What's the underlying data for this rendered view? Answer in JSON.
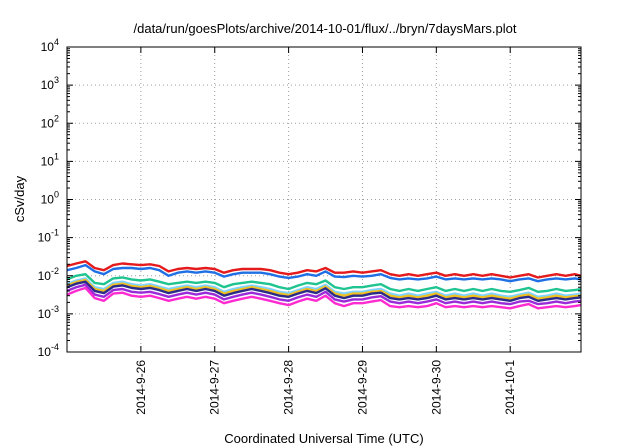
{
  "chart_data": {
    "type": "line",
    "title": "/data/run/goesPlots/archive/2014-10-01/flux/../bryn/7daysMars.plot",
    "xlabel": "Coordinated Universal Time (UTC)",
    "ylabel": "cSv/day",
    "yscale": "log",
    "ylim": [
      0.0001,
      10000
    ],
    "y_ticks": [
      {
        "base": "10",
        "exp": "-4",
        "value": 0.0001
      },
      {
        "base": "10",
        "exp": "-3",
        "value": 0.001
      },
      {
        "base": "10",
        "exp": "-2",
        "value": 0.01
      },
      {
        "base": "10",
        "exp": "-1",
        "value": 0.1
      },
      {
        "base": "10",
        "exp": "0",
        "value": 1
      },
      {
        "base": "10",
        "exp": "1",
        "value": 10
      },
      {
        "base": "10",
        "exp": "2",
        "value": 100
      },
      {
        "base": "10",
        "exp": "3",
        "value": 1000
      },
      {
        "base": "10",
        "exp": "4",
        "value": 10000
      }
    ],
    "xlim": [
      "2014-09-25 00:00",
      "2014-10-01 23:00"
    ],
    "x_ticks": [
      "2014-9-26",
      "2014-9-27",
      "2014-9-28",
      "2014-9-29",
      "2014-9-30",
      "2014-10-1"
    ],
    "grid": true,
    "x": [
      "2014-09-25 00:00",
      "2014-09-25 03:00",
      "2014-09-25 06:00",
      "2014-09-25 09:00",
      "2014-09-25 12:00",
      "2014-09-25 15:00",
      "2014-09-25 18:00",
      "2014-09-25 21:00",
      "2014-09-26 00:00",
      "2014-09-26 03:00",
      "2014-09-26 06:00",
      "2014-09-26 09:00",
      "2014-09-26 12:00",
      "2014-09-26 15:00",
      "2014-09-26 18:00",
      "2014-09-26 21:00",
      "2014-09-27 00:00",
      "2014-09-27 03:00",
      "2014-09-27 06:00",
      "2014-09-27 09:00",
      "2014-09-27 12:00",
      "2014-09-27 15:00",
      "2014-09-27 18:00",
      "2014-09-27 21:00",
      "2014-09-28 00:00",
      "2014-09-28 03:00",
      "2014-09-28 06:00",
      "2014-09-28 09:00",
      "2014-09-28 12:00",
      "2014-09-28 15:00",
      "2014-09-28 18:00",
      "2014-09-28 21:00",
      "2014-09-29 00:00",
      "2014-09-29 03:00",
      "2014-09-29 06:00",
      "2014-09-29 09:00",
      "2014-09-29 12:00",
      "2014-09-29 15:00",
      "2014-09-29 18:00",
      "2014-09-29 21:00",
      "2014-09-30 00:00",
      "2014-09-30 03:00",
      "2014-09-30 06:00",
      "2014-09-30 09:00",
      "2014-09-30 12:00",
      "2014-09-30 15:00",
      "2014-09-30 18:00",
      "2014-09-30 21:00",
      "2014-10-01 00:00",
      "2014-10-01 03:00",
      "2014-10-01 06:00",
      "2014-10-01 09:00",
      "2014-10-01 12:00",
      "2014-10-01 15:00",
      "2014-10-01 18:00",
      "2014-10-01 21:00",
      "2014-10-01 23:00"
    ],
    "series": [
      {
        "color": "#e41a1c",
        "values": [
          0.018,
          0.021,
          0.024,
          0.016,
          0.014,
          0.019,
          0.021,
          0.02,
          0.019,
          0.02,
          0.018,
          0.013,
          0.015,
          0.016,
          0.015,
          0.016,
          0.015,
          0.012,
          0.014,
          0.015,
          0.015,
          0.015,
          0.014,
          0.012,
          0.011,
          0.012,
          0.014,
          0.013,
          0.016,
          0.012,
          0.012,
          0.013,
          0.012,
          0.013,
          0.014,
          0.011,
          0.01,
          0.011,
          0.01,
          0.011,
          0.012,
          0.01,
          0.011,
          0.01,
          0.011,
          0.01,
          0.011,
          0.01,
          0.009,
          0.01,
          0.011,
          0.009,
          0.01,
          0.011,
          0.01,
          0.011,
          0.01
        ]
      },
      {
        "color": "#1f6fe5",
        "values": [
          0.014,
          0.016,
          0.019,
          0.013,
          0.011,
          0.015,
          0.016,
          0.016,
          0.015,
          0.016,
          0.014,
          0.01,
          0.012,
          0.013,
          0.012,
          0.013,
          0.012,
          0.0095,
          0.011,
          0.012,
          0.012,
          0.012,
          0.011,
          0.0095,
          0.0088,
          0.0095,
          0.011,
          0.01,
          0.013,
          0.0095,
          0.0092,
          0.01,
          0.0095,
          0.01,
          0.011,
          0.0088,
          0.008,
          0.0085,
          0.008,
          0.0085,
          0.0095,
          0.008,
          0.0085,
          0.008,
          0.0085,
          0.008,
          0.0085,
          0.008,
          0.0072,
          0.008,
          0.0085,
          0.0072,
          0.008,
          0.0085,
          0.008,
          0.0085,
          0.008
        ]
      },
      {
        "color": "#1fc490",
        "values": [
          0.008,
          0.01,
          0.011,
          0.0065,
          0.006,
          0.0085,
          0.009,
          0.008,
          0.0075,
          0.008,
          0.007,
          0.006,
          0.0065,
          0.007,
          0.0065,
          0.007,
          0.0065,
          0.005,
          0.006,
          0.0065,
          0.007,
          0.0065,
          0.006,
          0.005,
          0.0045,
          0.0055,
          0.0065,
          0.006,
          0.0075,
          0.005,
          0.0045,
          0.005,
          0.005,
          0.0055,
          0.006,
          0.0045,
          0.004,
          0.0045,
          0.004,
          0.0045,
          0.005,
          0.004,
          0.0045,
          0.004,
          0.0045,
          0.004,
          0.0045,
          0.004,
          0.0038,
          0.0042,
          0.0048,
          0.0038,
          0.004,
          0.0045,
          0.004,
          0.0042,
          0.0045
        ]
      },
      {
        "color": "#7fd4ff",
        "values": [
          0.006,
          0.0075,
          0.0085,
          0.005,
          0.0045,
          0.0065,
          0.007,
          0.006,
          0.0055,
          0.006,
          0.0052,
          0.0045,
          0.005,
          0.0055,
          0.005,
          0.0055,
          0.005,
          0.0038,
          0.0045,
          0.005,
          0.0055,
          0.005,
          0.0045,
          0.0038,
          0.0035,
          0.0042,
          0.005,
          0.0045,
          0.0058,
          0.0038,
          0.0034,
          0.0038,
          0.0038,
          0.0042,
          0.0045,
          0.0034,
          0.003,
          0.0034,
          0.003,
          0.0034,
          0.0038,
          0.003,
          0.0034,
          0.003,
          0.0034,
          0.003,
          0.0034,
          0.003,
          0.0028,
          0.0032,
          0.0036,
          0.0028,
          0.003,
          0.0034,
          0.003,
          0.0032,
          0.0034
        ]
      },
      {
        "color": "#f0c020",
        "values": [
          0.0055,
          0.0068,
          0.0078,
          0.0045,
          0.004,
          0.0058,
          0.0062,
          0.0054,
          0.005,
          0.0054,
          0.0047,
          0.004,
          0.0045,
          0.005,
          0.0045,
          0.005,
          0.0045,
          0.0034,
          0.004,
          0.0045,
          0.005,
          0.0045,
          0.004,
          0.0034,
          0.0031,
          0.0038,
          0.0045,
          0.004,
          0.0052,
          0.0034,
          0.003,
          0.0034,
          0.0034,
          0.0038,
          0.004,
          0.003,
          0.0027,
          0.003,
          0.0027,
          0.003,
          0.0034,
          0.0027,
          0.003,
          0.0027,
          0.003,
          0.0027,
          0.003,
          0.0027,
          0.0025,
          0.0029,
          0.0032,
          0.0025,
          0.0027,
          0.003,
          0.0027,
          0.0029,
          0.003
        ]
      },
      {
        "color": "#2b2b8a",
        "values": [
          0.005,
          0.0062,
          0.007,
          0.004,
          0.0035,
          0.0052,
          0.0056,
          0.0048,
          0.0045,
          0.0048,
          0.0042,
          0.0035,
          0.004,
          0.0045,
          0.004,
          0.0045,
          0.004,
          0.003,
          0.0035,
          0.004,
          0.0045,
          0.004,
          0.0035,
          0.003,
          0.0028,
          0.0034,
          0.004,
          0.0035,
          0.0047,
          0.003,
          0.0026,
          0.003,
          0.003,
          0.0034,
          0.0036,
          0.0026,
          0.0024,
          0.0026,
          0.0024,
          0.0026,
          0.003,
          0.0024,
          0.0026,
          0.0024,
          0.0026,
          0.0024,
          0.0026,
          0.0024,
          0.0022,
          0.0026,
          0.0028,
          0.0022,
          0.0024,
          0.0026,
          0.0024,
          0.0026,
          0.0027
        ]
      },
      {
        "color": "#9a2bd8",
        "values": [
          0.004,
          0.005,
          0.0058,
          0.0032,
          0.0028,
          0.0042,
          0.0045,
          0.0038,
          0.0036,
          0.0038,
          0.0033,
          0.0028,
          0.0032,
          0.0036,
          0.0032,
          0.0036,
          0.0032,
          0.0024,
          0.0028,
          0.0032,
          0.0036,
          0.0032,
          0.0028,
          0.0024,
          0.0022,
          0.0027,
          0.0032,
          0.0028,
          0.0038,
          0.0024,
          0.0021,
          0.0024,
          0.0024,
          0.0027,
          0.0029,
          0.0021,
          0.0019,
          0.0021,
          0.0019,
          0.0021,
          0.0024,
          0.0019,
          0.0021,
          0.0019,
          0.0021,
          0.0019,
          0.0021,
          0.0019,
          0.0018,
          0.0021,
          0.0022,
          0.0018,
          0.0019,
          0.0021,
          0.0019,
          0.0021,
          0.0022
        ]
      },
      {
        "color": "#ff2bd0",
        "values": [
          0.0032,
          0.004,
          0.0048,
          0.0026,
          0.0022,
          0.0034,
          0.0036,
          0.003,
          0.0028,
          0.003,
          0.0026,
          0.0022,
          0.0025,
          0.0028,
          0.0025,
          0.0028,
          0.0025,
          0.0019,
          0.0022,
          0.0025,
          0.0028,
          0.0025,
          0.0022,
          0.0019,
          0.0017,
          0.0021,
          0.0025,
          0.0022,
          0.003,
          0.0019,
          0.0016,
          0.0019,
          0.0019,
          0.0021,
          0.0023,
          0.0016,
          0.0015,
          0.0016,
          0.0015,
          0.0016,
          0.0019,
          0.0015,
          0.0016,
          0.0015,
          0.0016,
          0.0015,
          0.0016,
          0.0015,
          0.0014,
          0.0016,
          0.0018,
          0.0014,
          0.0015,
          0.0016,
          0.0015,
          0.0016,
          0.0017
        ]
      }
    ]
  }
}
